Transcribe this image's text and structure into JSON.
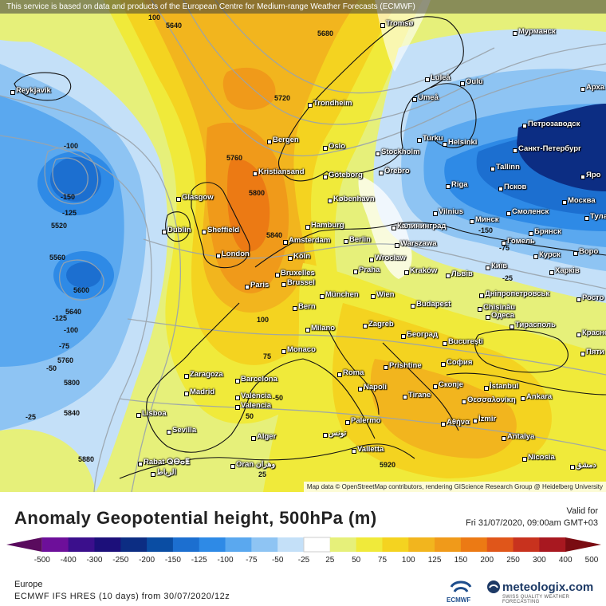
{
  "banner": "This service is based on data and products of the European Centre for Medium-range Weather Forecasts (ECMWF)",
  "attribution": "Map data © OpenStreetMap contributors, rendering GIScience Research Group @ Heidelberg University",
  "title": "Anomaly Geopotential height, 500hPa (m)",
  "valid_label": "Valid for",
  "valid_date": "Fri 31/07/2020, 09:00am GMT+03",
  "region": "Europe",
  "model": "ECMWF IFS HRES (10 days) from 30/07/2020/12z",
  "ecmwf_label": "ECMWF",
  "brand": "meteologix.com",
  "brand_sub": "SWISS QUALITY WEATHER FORECASTING",
  "scale": {
    "ticks": [
      "-500",
      "-400",
      "-300",
      "-250",
      "-200",
      "-150",
      "-125",
      "-100",
      "-75",
      "-50",
      "-25",
      "25",
      "50",
      "75",
      "100",
      "125",
      "150",
      "200",
      "250",
      "300",
      "400",
      "500"
    ],
    "colors": [
      "#5a0b5e",
      "#6d0f9a",
      "#3b0f8c",
      "#1c0f7a",
      "#0c2d83",
      "#0a4da3",
      "#1c6fd0",
      "#2e8ae6",
      "#5aa8ef",
      "#8ec4f3",
      "#c4e0f8",
      "#ffffff",
      "#e6f07a",
      "#f0ea3a",
      "#f4d320",
      "#f2b51e",
      "#f09a1a",
      "#ec7a14",
      "#e0561a",
      "#c8321e",
      "#a81820",
      "#7a0c12"
    ]
  },
  "cities": [
    {
      "name": "Reykjavik"
    },
    {
      "name": "Tromsø"
    },
    {
      "name": "Мурманск"
    },
    {
      "name": "Luleå"
    },
    {
      "name": "Oulu"
    },
    {
      "name": "Umeå"
    },
    {
      "name": "Арха"
    },
    {
      "name": "Trondheim"
    },
    {
      "name": "Петрозаводск"
    },
    {
      "name": "Bergen"
    },
    {
      "name": "Oslo"
    },
    {
      "name": "Turku"
    },
    {
      "name": "Helsinki"
    },
    {
      "name": "Санкт-Петербург"
    },
    {
      "name": "Stockholm"
    },
    {
      "name": "Örebro"
    },
    {
      "name": "Tallinn"
    },
    {
      "name": "Яро"
    },
    {
      "name": "Kristiansand"
    },
    {
      "name": "Göteborg"
    },
    {
      "name": "Псков"
    },
    {
      "name": "Riga"
    },
    {
      "name": "Glasgow"
    },
    {
      "name": "København"
    },
    {
      "name": "Москва"
    },
    {
      "name": "Смоленск"
    },
    {
      "name": "Vilnius"
    },
    {
      "name": "Минск"
    },
    {
      "name": "Тула"
    },
    {
      "name": "Hamburg"
    },
    {
      "name": "Калининград"
    },
    {
      "name": "Брянск"
    },
    {
      "name": "Dublin"
    },
    {
      "name": "Sheffield"
    },
    {
      "name": "Amsterdam"
    },
    {
      "name": "Berlin"
    },
    {
      "name": "Warszawa"
    },
    {
      "name": "Гомель"
    },
    {
      "name": "Воро"
    },
    {
      "name": "London"
    },
    {
      "name": "Köln"
    },
    {
      "name": "Wrocław"
    },
    {
      "name": "Курск"
    },
    {
      "name": "Київ"
    },
    {
      "name": "Bruxelles"
    },
    {
      "name": "Brussel"
    },
    {
      "name": "Praha"
    },
    {
      "name": "Kraków"
    },
    {
      "name": "Львів"
    },
    {
      "name": "Харків"
    },
    {
      "name": "Paris"
    },
    {
      "name": "München"
    },
    {
      "name": "Wien"
    },
    {
      "name": "Дніпропетровськ"
    },
    {
      "name": "Chișinău"
    },
    {
      "name": "Росто"
    },
    {
      "name": "Bern"
    },
    {
      "name": "Budapest"
    },
    {
      "name": "Одеса"
    },
    {
      "name": "Milano"
    },
    {
      "name": "Zagreb"
    },
    {
      "name": "Тирасполь"
    },
    {
      "name": "Београд"
    },
    {
      "name": "București"
    },
    {
      "name": "Красно"
    },
    {
      "name": "Monaco"
    },
    {
      "name": "Пяти"
    },
    {
      "name": "Roma"
    },
    {
      "name": "Prishtine"
    },
    {
      "name": "София"
    },
    {
      "name": "Zaragoza"
    },
    {
      "name": "Barcelona"
    },
    {
      "name": "Napoli"
    },
    {
      "name": "Скопје"
    },
    {
      "name": "İstanbul"
    },
    {
      "name": "Madrid"
    },
    {
      "name": "Tirane"
    },
    {
      "name": "Θεσσαλονίκη"
    },
    {
      "name": "Ankara"
    },
    {
      "name": "València"
    },
    {
      "name": "Valencia"
    },
    {
      "name": "Lisboa"
    },
    {
      "name": "Palermo"
    },
    {
      "name": "Αθήνα"
    },
    {
      "name": "İzmir"
    },
    {
      "name": "Sevilla"
    },
    {
      "name": "Alger"
    },
    {
      "name": "تونس"
    },
    {
      "name": "Antalya"
    },
    {
      "name": "Valletta"
    },
    {
      "name": "Rabat ⵕⴱⴰⵟ"
    },
    {
      "name": "الرباط"
    },
    {
      "name": "Oran وهران"
    },
    {
      "name": "Nicosia"
    },
    {
      "name": "دمشق"
    }
  ],
  "contour_labels": [
    {
      "text": "100"
    },
    {
      "text": "5640"
    },
    {
      "text": "5680"
    },
    {
      "text": "5720"
    },
    {
      "text": "5760"
    },
    {
      "text": "5800"
    },
    {
      "text": "5840"
    },
    {
      "text": "-100"
    },
    {
      "text": "-150"
    },
    {
      "text": "-125"
    },
    {
      "text": "5520"
    },
    {
      "text": "5560"
    },
    {
      "text": "5600"
    },
    {
      "text": "5640"
    },
    {
      "text": "-125"
    },
    {
      "text": "-100"
    },
    {
      "text": "-75"
    },
    {
      "text": "5760"
    },
    {
      "text": "-50"
    },
    {
      "text": "5800"
    },
    {
      "text": "-25"
    },
    {
      "text": "5840"
    },
    {
      "text": "5880"
    },
    {
      "text": "100"
    },
    {
      "text": "75"
    },
    {
      "text": "50"
    },
    {
      "text": "25"
    },
    {
      "text": "5920"
    },
    {
      "text": "-150"
    },
    {
      "text": "-75"
    },
    {
      "text": "-25"
    },
    {
      "text": "-50"
    }
  ]
}
